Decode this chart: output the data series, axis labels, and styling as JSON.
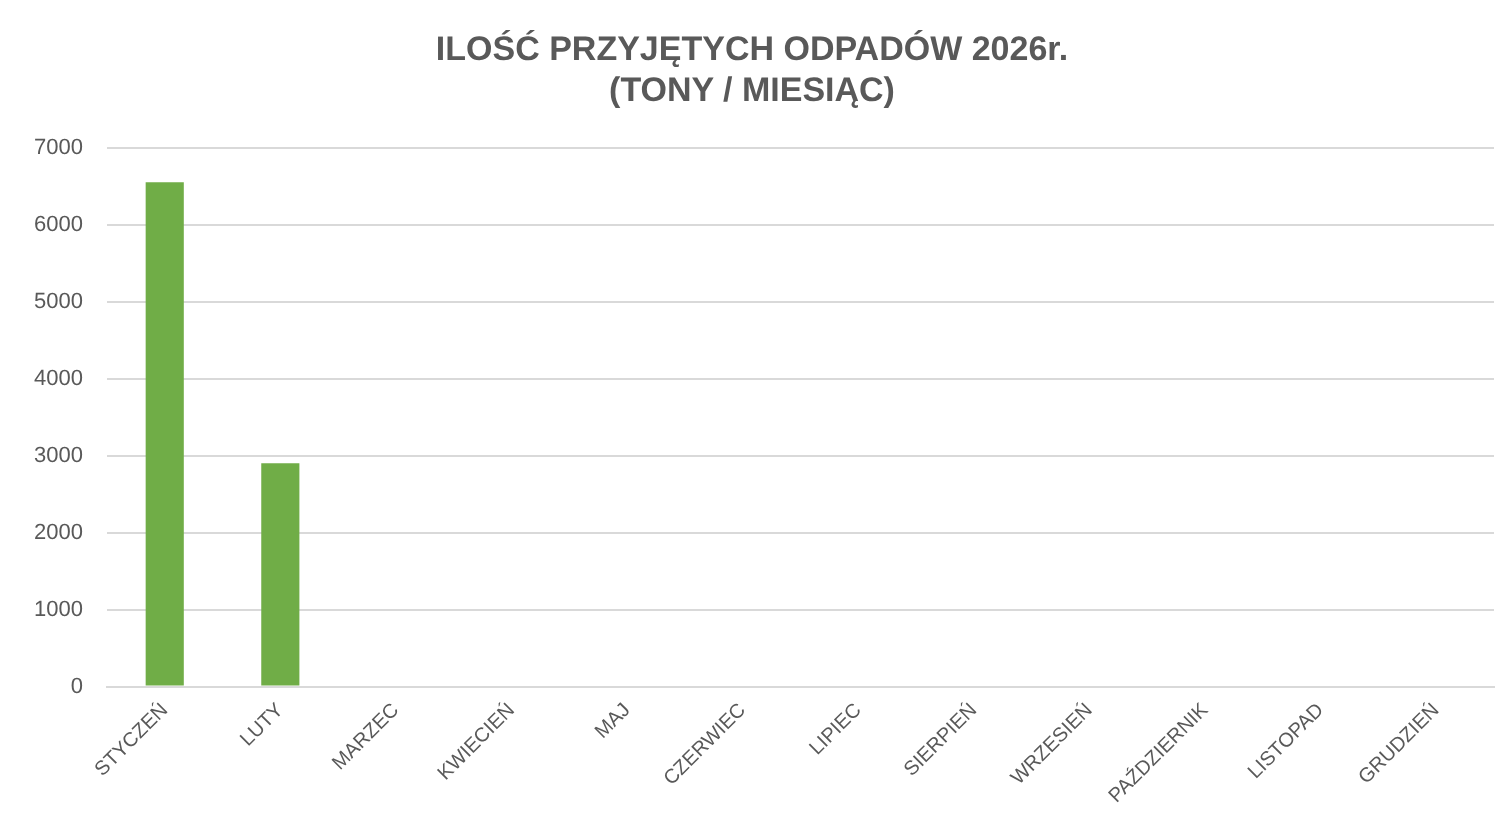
{
  "chart_data": {
    "type": "bar",
    "title": "ILOŚĆ PRZYJĘTYCH ODPADÓW 2026r.\n(TONY / MIESIĄC)",
    "categories": [
      "STYCZEŃ",
      "LUTY",
      "MARZEC",
      "KWIECIEŃ",
      "MAJ",
      "CZERWIEC",
      "LIPIEC",
      "SIERPIEŃ",
      "WRZESIEŃ",
      "PAŹDZIERNIK",
      "LISTOPAD",
      "GRUDZIEŃ"
    ],
    "values": [
      6550,
      2900,
      null,
      null,
      null,
      null,
      null,
      null,
      null,
      null,
      null,
      null
    ],
    "color": "#70ad47",
    "ylim": [
      0,
      7000
    ],
    "yticks": [
      0,
      1000,
      2000,
      3000,
      4000,
      5000,
      6000,
      7000
    ],
    "grid": "y"
  }
}
